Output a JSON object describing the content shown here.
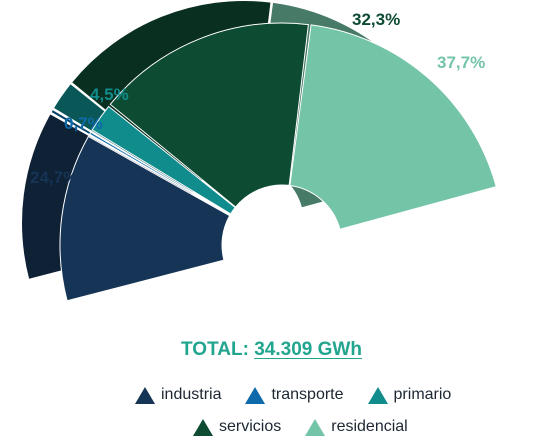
{
  "chart_data": {
    "type": "pie",
    "subtype": "3d-semi-donut",
    "categories": [
      "industria",
      "transporte",
      "primario",
      "servicios",
      "residencial"
    ],
    "values": [
      24.7,
      0.7,
      4.5,
      32.3,
      37.7
    ],
    "labels": [
      "24,7%",
      "0,7%",
      "4,5%",
      "32,3%",
      "37,7%"
    ],
    "colors": [
      "#163556",
      "#0e6aaa",
      "#108c8c",
      "#0d4b32",
      "#74c4a8"
    ],
    "total_label": "TOTAL:",
    "total_value": "34.309 GWh",
    "total_color": "#22a58e",
    "legend_position": "bottom"
  }
}
